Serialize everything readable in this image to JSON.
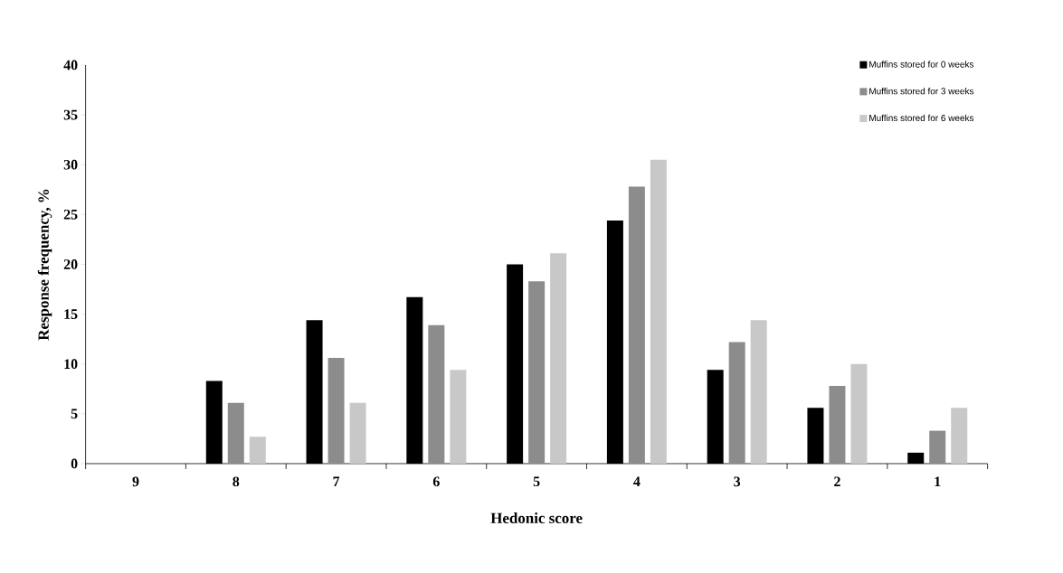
{
  "chart_data": {
    "type": "bar",
    "xlabel": "Hedonic score",
    "ylabel": "Response frequency, %",
    "categories": [
      "9",
      "8",
      "7",
      "6",
      "5",
      "4",
      "3",
      "2",
      "1"
    ],
    "series": [
      {
        "name": "Muffins stored for 0 weeks",
        "color": "#000000",
        "values": [
          0,
          8.3,
          14.4,
          16.7,
          20,
          24.4,
          9.4,
          5.6,
          1.1
        ]
      },
      {
        "name": "Muffins stored for 3 weeks",
        "color": "#8c8c8c",
        "values": [
          0,
          6.1,
          10.6,
          13.9,
          18.3,
          27.8,
          12.2,
          7.8,
          3.3
        ]
      },
      {
        "name": "Muffins stored for 6 weeks",
        "color": "#c8c8c8",
        "values": [
          0,
          2.7,
          6.1,
          9.4,
          21.1,
          30.5,
          14.4,
          10,
          5.6
        ]
      }
    ],
    "ylim": [
      0,
      40
    ],
    "yticks": [
      0,
      5,
      10,
      15,
      20,
      25,
      30,
      35,
      40
    ],
    "legend": "top right"
  }
}
